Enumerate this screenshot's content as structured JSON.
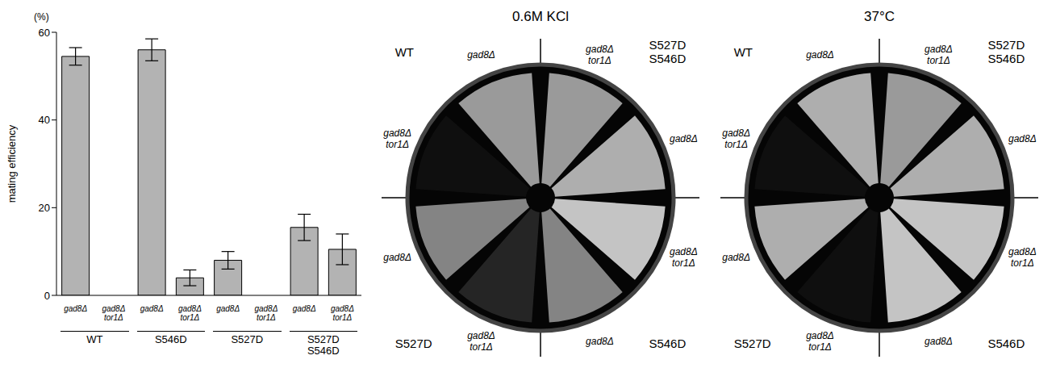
{
  "chart_data": {
    "type": "bar",
    "y_label": "mating efficiency",
    "y_unit": "(%)",
    "categories": [
      "gad8Δ",
      "gad8Δ tor1Δ",
      "gad8Δ",
      "gad8Δ tor1Δ",
      "gad8Δ",
      "gad8Δ tor1Δ",
      "gad8Δ",
      "gad8Δ tor1Δ"
    ],
    "groups": [
      {
        "label": "WT",
        "size": 2
      },
      {
        "label": "S546D",
        "size": 2
      },
      {
        "label": "S527D",
        "size": 2
      },
      {
        "label": "S527D S546D",
        "size": 2
      }
    ],
    "values": [
      54.5,
      0,
      56,
      4,
      8,
      0,
      15.5,
      10.5
    ],
    "errors": [
      2,
      null,
      2.5,
      1.8,
      2,
      null,
      3,
      3.5
    ],
    "color": "#b3b3b3",
    "ylim": [
      0,
      60
    ],
    "yticks": [
      0,
      20,
      40,
      60
    ],
    "grid": false
  },
  "plates": [
    {
      "title": "0.6M KCl",
      "quadrants": [
        {
          "label": "S527D S546D",
          "sectors": [
            {
              "label": "gad8Δ tor1Δ",
              "growth": 0.7
            },
            {
              "label": "gad8Δ",
              "growth": 0.8
            }
          ]
        },
        {
          "label": "S546D",
          "sectors": [
            {
              "label": "gad8Δ tor1Δ",
              "growth": 0.9
            },
            {
              "label": "gad8Δ",
              "growth": 0.6
            }
          ]
        },
        {
          "label": "S527D",
          "sectors": [
            {
              "label": "gad8Δ tor1Δ",
              "growth": 0.15
            },
            {
              "label": "gad8Δ",
              "growth": 0.6
            }
          ]
        },
        {
          "label": "WT",
          "sectors": [
            {
              "label": "gad8Δ tor1Δ",
              "growth": 0.05
            },
            {
              "label": "gad8Δ",
              "growth": 0.7
            }
          ]
        }
      ]
    },
    {
      "title": "37°C",
      "quadrants": [
        {
          "label": "S527D S546D",
          "sectors": [
            {
              "label": "gad8Δ tor1Δ",
              "growth": 0.7
            },
            {
              "label": "gad8Δ",
              "growth": 0.8
            }
          ]
        },
        {
          "label": "S546D",
          "sectors": [
            {
              "label": "gad8Δ tor1Δ",
              "growth": 0.9
            },
            {
              "label": "gad8Δ",
              "growth": 0.9
            }
          ]
        },
        {
          "label": "S527D",
          "sectors": [
            {
              "label": "gad8Δ tor1Δ",
              "growth": 0.05
            },
            {
              "label": "gad8Δ",
              "growth": 0.8
            }
          ]
        },
        {
          "label": "WT",
          "sectors": [
            {
              "label": "gad8Δ tor1Δ",
              "growth": 0.05
            },
            {
              "label": "gad8Δ",
              "growth": 0.8
            }
          ]
        }
      ]
    }
  ]
}
